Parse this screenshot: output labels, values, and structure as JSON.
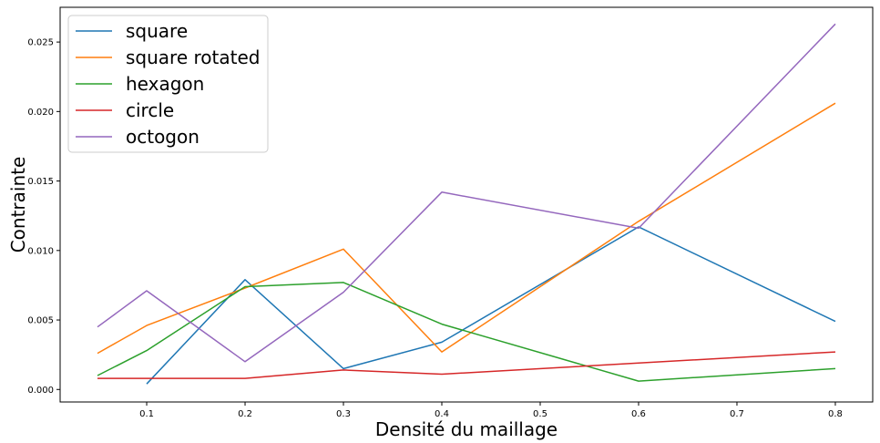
{
  "chart_data": {
    "type": "line",
    "xlabel": "Densité du maillage",
    "ylabel": "Contrainte",
    "xlim": [
      0.012,
      0.838
    ],
    "ylim": [
      -0.0009,
      0.0275
    ],
    "x_ticks": [
      0.1,
      0.2,
      0.3,
      0.4,
      0.5,
      0.6,
      0.7,
      0.8
    ],
    "x_tick_labels": [
      "0.1",
      "0.2",
      "0.3",
      "0.4",
      "0.5",
      "0.6",
      "0.7",
      "0.8"
    ],
    "y_ticks": [
      0.0,
      0.005,
      0.01,
      0.015,
      0.02,
      0.025
    ],
    "y_tick_labels": [
      "0.000",
      "0.005",
      "0.010",
      "0.015",
      "0.020",
      "0.025"
    ],
    "grid": false,
    "legend_position": "top-left",
    "series": [
      {
        "name": "square",
        "color": "#1f77b4",
        "x": [
          0.1,
          0.2,
          0.3,
          0.4,
          0.6,
          0.8
        ],
        "y": [
          0.0004,
          0.0079,
          0.0015,
          0.0034,
          0.0117,
          0.0049
        ]
      },
      {
        "name": "square rotated",
        "color": "#ff7f0e",
        "x": [
          0.05,
          0.1,
          0.2,
          0.3,
          0.4,
          0.6,
          0.8
        ],
        "y": [
          0.0026,
          0.0046,
          0.0073,
          0.0101,
          0.0027,
          0.0121,
          0.0206
        ]
      },
      {
        "name": "hexagon",
        "color": "#2ca02c",
        "x": [
          0.05,
          0.1,
          0.2,
          0.3,
          0.4,
          0.6,
          0.8
        ],
        "y": [
          0.001,
          0.0028,
          0.0074,
          0.0077,
          0.0047,
          0.0006,
          0.0015
        ]
      },
      {
        "name": "circle",
        "color": "#d62728",
        "x": [
          0.05,
          0.1,
          0.2,
          0.3,
          0.4,
          0.6,
          0.8
        ],
        "y": [
          0.0008,
          0.0008,
          0.0008,
          0.0014,
          0.0011,
          0.0019,
          0.0027
        ]
      },
      {
        "name": "octogon",
        "color": "#9467bd",
        "x": [
          0.05,
          0.1,
          0.2,
          0.3,
          0.4,
          0.6,
          0.8
        ],
        "y": [
          0.0045,
          0.0071,
          0.002,
          0.007,
          0.0142,
          0.0116,
          0.0263
        ]
      }
    ]
  }
}
